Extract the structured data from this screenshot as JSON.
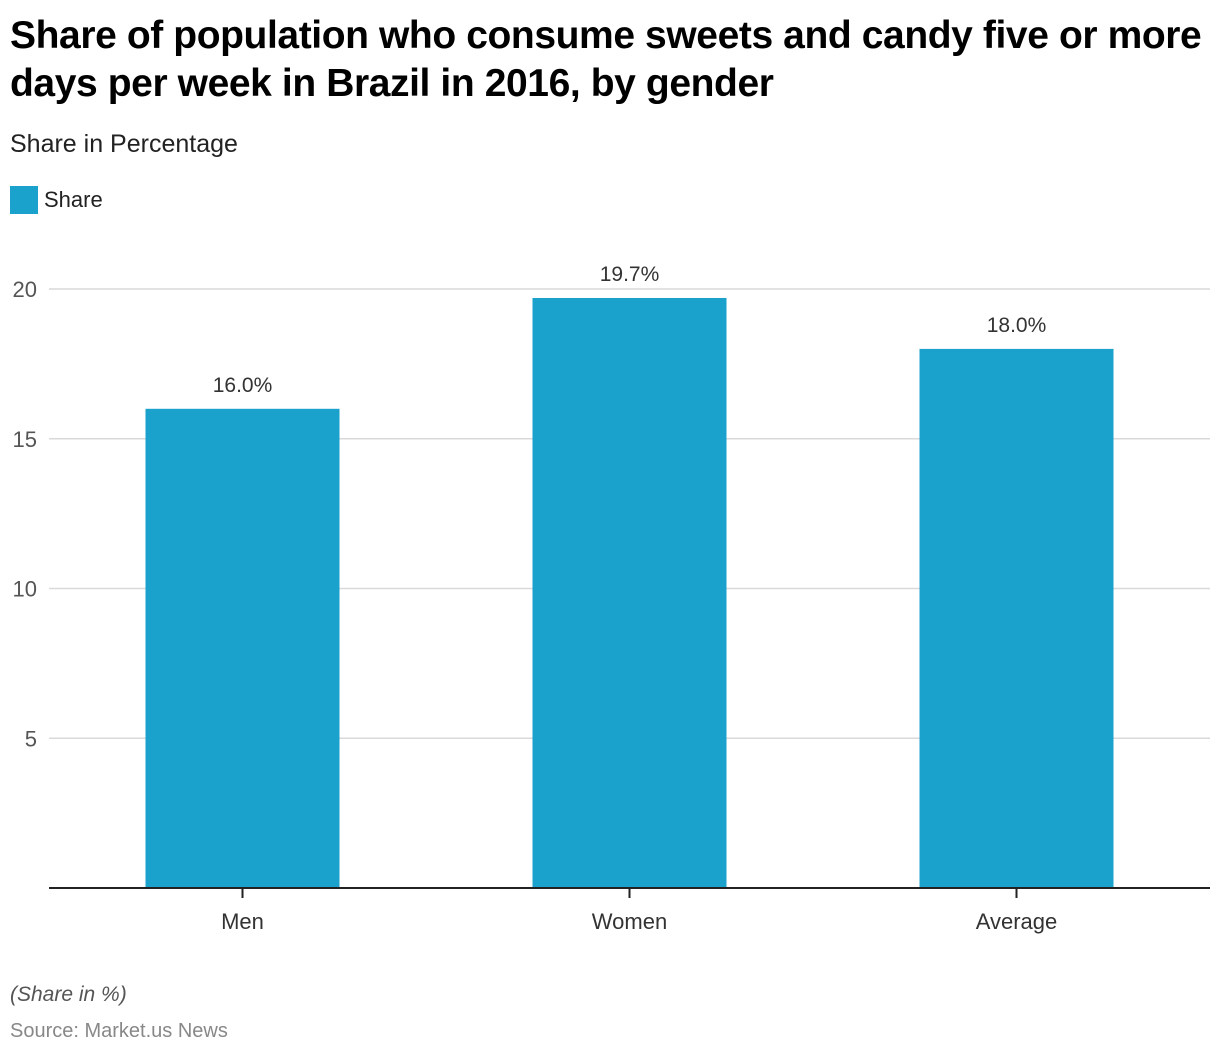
{
  "title": "Share of population who consume sweets and candy five or more days per week in Brazil in 2016, by gender",
  "subtitle": "Share in Percentage",
  "legend": {
    "label": "Share",
    "color": "#1aa1cc"
  },
  "note": "(Share in %)",
  "source": "Source: Market.us News",
  "chart_data": {
    "type": "bar",
    "title": "Share of population who consume sweets and candy five or more days per week in Brazil in 2016, by gender",
    "subtitle": "Share in Percentage",
    "xlabel": "",
    "ylabel": "Share in Percentage",
    "categories": [
      "Men",
      "Women",
      "Average"
    ],
    "series": [
      {
        "name": "Share",
        "values": [
          16.0,
          19.7,
          18.0
        ],
        "labels": [
          "16.0%",
          "19.7%",
          "18.0%"
        ],
        "color": "#1aa1cc"
      }
    ],
    "ylim": [
      0,
      20
    ],
    "yticks": [
      5,
      10,
      15,
      20
    ],
    "grid": true,
    "legend_position": "top-left"
  }
}
